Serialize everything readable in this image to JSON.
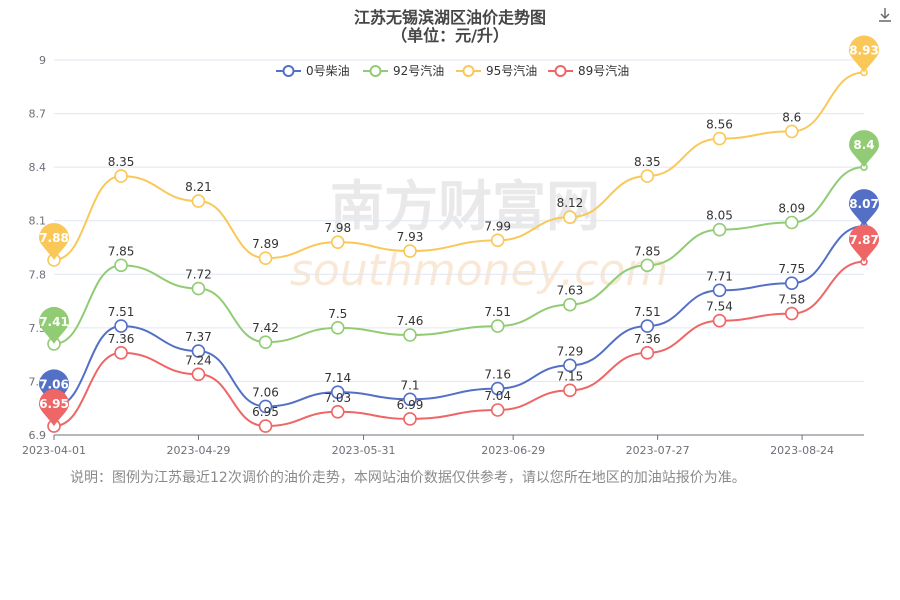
{
  "title": "江苏无锡滨湖区油价走势图",
  "subtitle": "（单位：元/升）",
  "note": "说明：图例为江苏最近12次调价的油价走势，本网站油价数据仅供参考，请以您所在地区的加油站报价为准。",
  "watermark": {
    "cn": "南方财富网",
    "en": "southmoney.com"
  },
  "download_icon": "download-icon",
  "chart_data": {
    "type": "line",
    "x": [
      "2023-04-01",
      "2023-04-14",
      "2023-04-29",
      "2023-05-12",
      "2023-05-26",
      "2023-06-09",
      "2023-06-26",
      "2023-07-10",
      "2023-07-25",
      "2023-08-08",
      "2023-08-22",
      "2023-09-05"
    ],
    "x_tick_labels": [
      "2023-04-01",
      "2023-04-29",
      "2023-05-31",
      "2023-06-29",
      "2023-07-27",
      "2023-08-24"
    ],
    "x_tick_dates": [
      "2023-04-01",
      "2023-04-29",
      "2023-05-31",
      "2023-06-29",
      "2023-07-27",
      "2023-08-24"
    ],
    "ylim": [
      6.9,
      9
    ],
    "y_ticks": [
      "6.9",
      "7.2",
      "7.5",
      "7.8",
      "8.1",
      "8.4",
      "8.7",
      "9"
    ],
    "legend_position": "top-center",
    "grid": true,
    "series": [
      {
        "name": "0号柴油",
        "color": "#5470c6",
        "values": [
          7.06,
          7.51,
          7.37,
          7.06,
          7.14,
          7.1,
          7.16,
          7.29,
          7.51,
          7.71,
          7.75,
          8.07
        ]
      },
      {
        "name": "92号汽油",
        "color": "#91cc75",
        "values": [
          7.41,
          7.85,
          7.72,
          7.42,
          7.5,
          7.46,
          7.51,
          7.63,
          7.85,
          8.05,
          8.09,
          8.4
        ]
      },
      {
        "name": "95号汽油",
        "color": "#fac858",
        "values": [
          7.88,
          8.35,
          8.21,
          7.89,
          7.98,
          7.93,
          7.99,
          8.12,
          8.35,
          8.56,
          8.6,
          8.93
        ]
      },
      {
        "name": "89号汽油",
        "color": "#ee6666",
        "values": [
          6.95,
          7.36,
          7.24,
          6.95,
          7.03,
          6.99,
          7.04,
          7.15,
          7.36,
          7.54,
          7.58,
          7.87
        ]
      }
    ]
  }
}
